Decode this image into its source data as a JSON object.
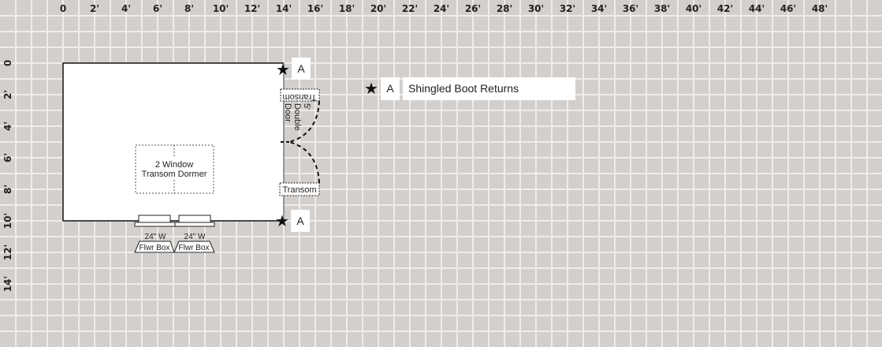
{
  "grid": {
    "background": "#d3cfcc",
    "line_color": "#efedeb",
    "x_ticks": [
      "0",
      "2'",
      "4'",
      "6'",
      "8'",
      "10'",
      "12'",
      "14'",
      "16'",
      "18'",
      "20'",
      "22'",
      "24'",
      "26'",
      "28'",
      "30'",
      "32'",
      "34'",
      "36'",
      "38'",
      "40'",
      "42'",
      "44'",
      "46'",
      "48'"
    ],
    "y_ticks": [
      "0",
      "2'",
      "4'",
      "6'",
      "8'",
      "10'",
      "12'",
      "14'"
    ]
  },
  "plan": {
    "dormer_label_1": "2 Window",
    "dormer_label_2": "Transom Dormer",
    "top_transom": "Transom",
    "bottom_transom": "Transom",
    "door_label_1": "5'",
    "door_label_2": "Double",
    "door_label_3": "Door",
    "flower_boxes": [
      {
        "width_label": "24\" W",
        "label": "Flwr Box"
      },
      {
        "width_label": "24\" W",
        "label": "Flwr Box"
      }
    ],
    "corner_markers": [
      "A",
      "A"
    ]
  },
  "legend": {
    "icon": "star-icon",
    "key": "A",
    "label": "Shingled Boot Returns"
  }
}
